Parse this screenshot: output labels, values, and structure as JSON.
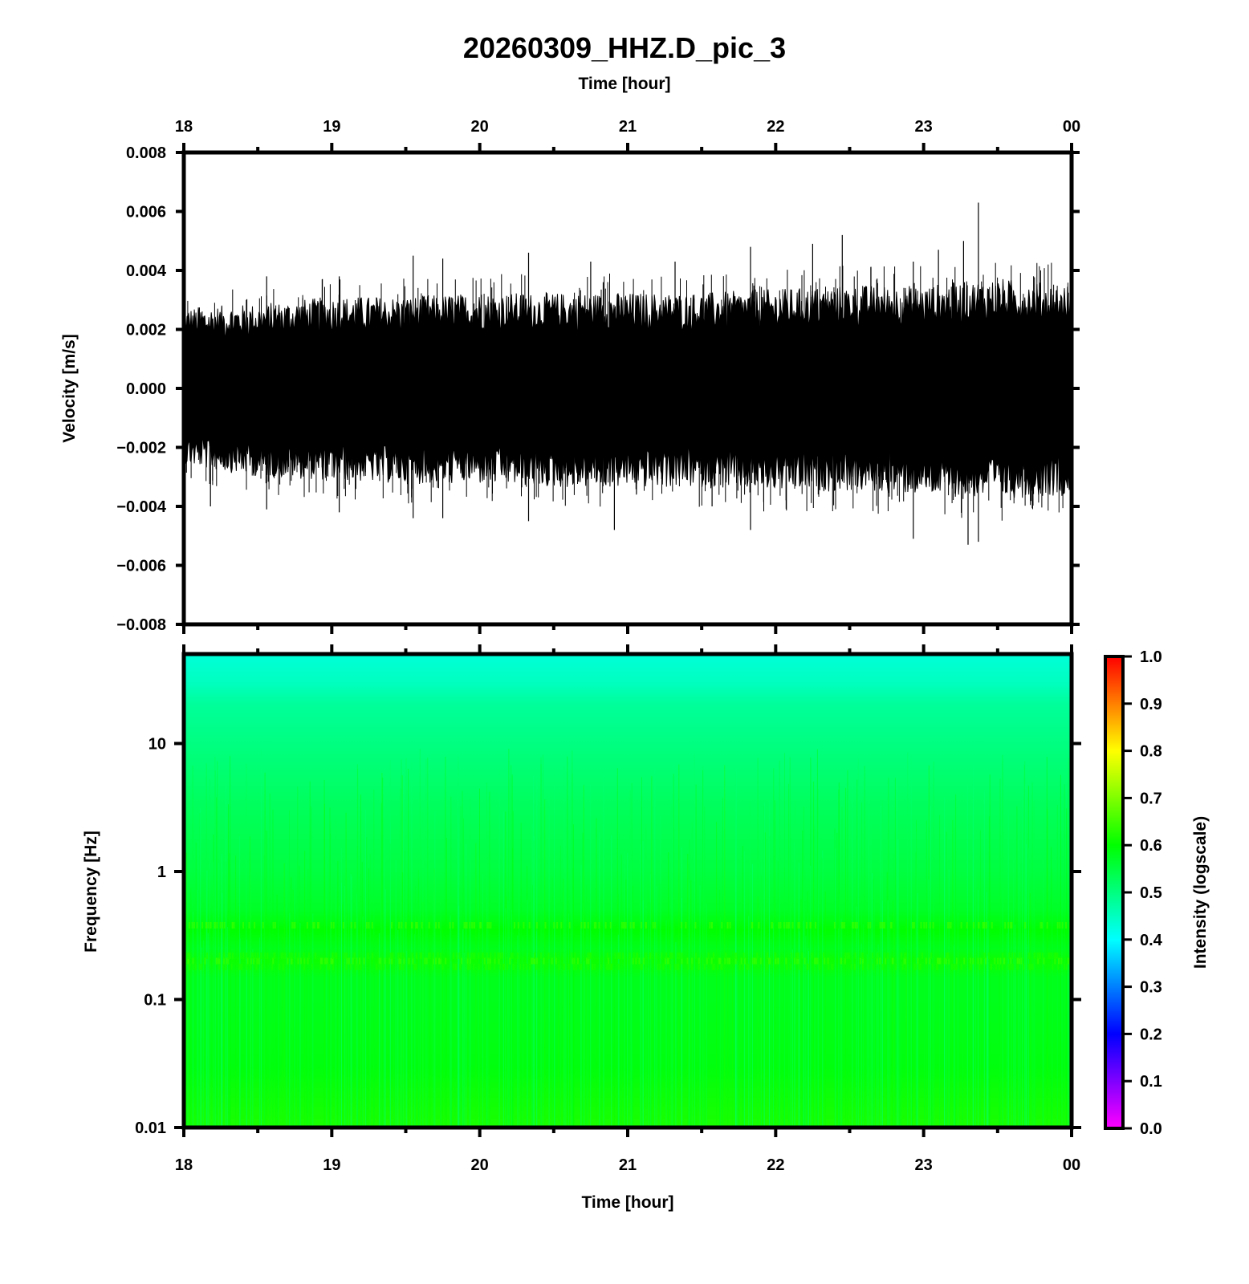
{
  "chart_data": [
    {
      "type": "line",
      "title": "20260309_HHZ.D_pic_3",
      "xlabel": "Time [hour]",
      "ylabel": "Velocity [m/s]",
      "xlim": [
        18,
        24
      ],
      "ylim": [
        -0.008,
        0.008
      ],
      "xticks": [
        "18",
        "19",
        "20",
        "21",
        "22",
        "23",
        "00"
      ],
      "yticks": [
        "0.008",
        "0.006",
        "0.004",
        "0.002",
        "0.000",
        "−0.002",
        "−0.004",
        "−0.006",
        "−0.008"
      ],
      "envelope": {
        "x": [
          18.0,
          18.5,
          19.0,
          19.5,
          20.0,
          20.5,
          21.0,
          21.5,
          22.0,
          22.5,
          23.0,
          23.5,
          24.0
        ],
        "upper": [
          0.0022,
          0.0023,
          0.0025,
          0.0025,
          0.0026,
          0.0026,
          0.0026,
          0.0026,
          0.0027,
          0.0028,
          0.0028,
          0.003,
          0.0028
        ],
        "lower": [
          -0.0021,
          -0.0024,
          -0.0025,
          -0.0026,
          -0.0026,
          -0.0027,
          -0.0027,
          -0.0027,
          -0.0028,
          -0.0028,
          -0.0029,
          -0.003,
          -0.0029
        ]
      },
      "spikes": [
        {
          "x": 18.18,
          "y": -0.004
        },
        {
          "x": 18.56,
          "y": 0.0038
        },
        {
          "x": 18.56,
          "y": -0.0041
        },
        {
          "x": 19.05,
          "y": 0.0038
        },
        {
          "x": 19.05,
          "y": -0.0042
        },
        {
          "x": 19.55,
          "y": 0.0045
        },
        {
          "x": 19.55,
          "y": -0.0044
        },
        {
          "x": 19.75,
          "y": 0.0044
        },
        {
          "x": 19.75,
          "y": -0.0044
        },
        {
          "x": 20.33,
          "y": 0.0046
        },
        {
          "x": 20.33,
          "y": -0.0045
        },
        {
          "x": 20.75,
          "y": 0.0043
        },
        {
          "x": 20.91,
          "y": -0.0048
        },
        {
          "x": 21.32,
          "y": 0.0043
        },
        {
          "x": 21.57,
          "y": -0.004
        },
        {
          "x": 21.83,
          "y": 0.0048
        },
        {
          "x": 21.83,
          "y": -0.0048
        },
        {
          "x": 22.25,
          "y": 0.0049
        },
        {
          "x": 22.45,
          "y": 0.0052
        },
        {
          "x": 22.93,
          "y": 0.0043
        },
        {
          "x": 22.93,
          "y": -0.0051
        },
        {
          "x": 23.1,
          "y": 0.0047
        },
        {
          "x": 23.3,
          "y": -0.0053
        },
        {
          "x": 23.37,
          "y": 0.0063
        },
        {
          "x": 23.37,
          "y": -0.0052
        },
        {
          "x": 23.27,
          "y": 0.005
        }
      ]
    },
    {
      "type": "heatmap",
      "xlabel": "Time [hour]",
      "ylabel": "Frequency [Hz]",
      "xlim": [
        18,
        24
      ],
      "ylim": [
        0.01,
        50
      ],
      "yscale": "log",
      "xticks": [
        "18",
        "19",
        "20",
        "21",
        "22",
        "23",
        "00"
      ],
      "yticks": [
        "10",
        "1",
        "0.1",
        "0.01"
      ],
      "colorbar": {
        "label": "Intensity (logscale)",
        "ticks": [
          "1.0",
          "0.9",
          "0.8",
          "0.7",
          "0.6",
          "0.5",
          "0.4",
          "0.3",
          "0.2",
          "0.1",
          "0.0"
        ],
        "range": [
          0,
          1
        ],
        "colormap": [
          "#ff00ff",
          "#0000ff",
          "#00ffff",
          "#00ff00",
          "#ffff00",
          "#ff0000"
        ]
      },
      "intensity_profile": {
        "frequency": [
          50,
          30,
          20,
          10,
          3,
          1,
          0.5,
          0.35,
          0.25,
          0.2,
          0.15,
          0.1,
          0.03,
          0.01
        ],
        "intensity": [
          0.43,
          0.45,
          0.48,
          0.5,
          0.53,
          0.55,
          0.57,
          0.6,
          0.58,
          0.61,
          0.58,
          0.58,
          0.59,
          0.62
        ]
      }
    }
  ]
}
